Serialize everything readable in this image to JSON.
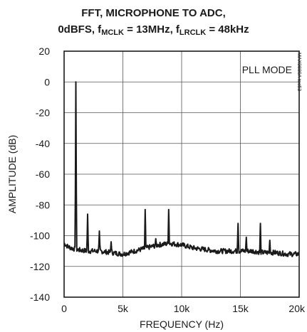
{
  "chart_data": {
    "type": "line",
    "title_line1": "FFT, MICROPHONE TO ADC,",
    "title_line2": {
      "prefix": "0dBFS, f",
      "sub1": "MCLK",
      "mid": " = 13MHz, f",
      "sub2": "LRCLK",
      "suffix": " = 48kHz"
    },
    "xlabel": "FREQUENCY (Hz)",
    "ylabel": "AMPLITUDE (dB)",
    "annotation": "PLL MODE",
    "figure_id": "MAX9880A toc53",
    "xlim": [
      0,
      20000
    ],
    "ylim": [
      -140,
      20
    ],
    "x_ticks": [
      {
        "value": 0,
        "label": "0"
      },
      {
        "value": 5000,
        "label": "5k"
      },
      {
        "value": 10000,
        "label": "10k"
      },
      {
        "value": 15000,
        "label": "15k"
      },
      {
        "value": 20000,
        "label": "20k"
      }
    ],
    "y_ticks": [
      {
        "value": 20,
        "label": "20"
      },
      {
        "value": 0,
        "label": "0"
      },
      {
        "value": -20,
        "label": "-20"
      },
      {
        "value": -40,
        "label": "-40"
      },
      {
        "value": -60,
        "label": "-60"
      },
      {
        "value": -80,
        "label": "-80"
      },
      {
        "value": -100,
        "label": "-100"
      },
      {
        "value": -120,
        "label": "-120"
      },
      {
        "value": -140,
        "label": "-140"
      }
    ],
    "grid": true,
    "series": [
      {
        "color": "#1a1a1a",
        "noise_floor": [
          [
            0,
            -105
          ],
          [
            300,
            -107
          ],
          [
            600,
            -108
          ],
          [
            1000,
            -109
          ],
          [
            2000,
            -110
          ],
          [
            3000,
            -110
          ],
          [
            4000,
            -111
          ],
          [
            5000,
            -112
          ],
          [
            6000,
            -110
          ],
          [
            7000,
            -108
          ],
          [
            8000,
            -106
          ],
          [
            9000,
            -105
          ],
          [
            10000,
            -106
          ],
          [
            11000,
            -108
          ],
          [
            12000,
            -109
          ],
          [
            13000,
            -110
          ],
          [
            14000,
            -110
          ],
          [
            15000,
            -110
          ],
          [
            16000,
            -110
          ],
          [
            17000,
            -111
          ],
          [
            18000,
            -111
          ],
          [
            19000,
            -112
          ],
          [
            20000,
            -112
          ]
        ],
        "peaks": [
          {
            "x": 1000,
            "y": 0
          },
          {
            "x": 2000,
            "y": -86
          },
          {
            "x": 3000,
            "y": -97
          },
          {
            "x": 4000,
            "y": -104
          },
          {
            "x": 6900,
            "y": -83
          },
          {
            "x": 7800,
            "y": -102
          },
          {
            "x": 8900,
            "y": -83
          },
          {
            "x": 14800,
            "y": -92
          },
          {
            "x": 15500,
            "y": -101
          },
          {
            "x": 16700,
            "y": -92
          },
          {
            "x": 17500,
            "y": -103
          }
        ]
      }
    ]
  }
}
